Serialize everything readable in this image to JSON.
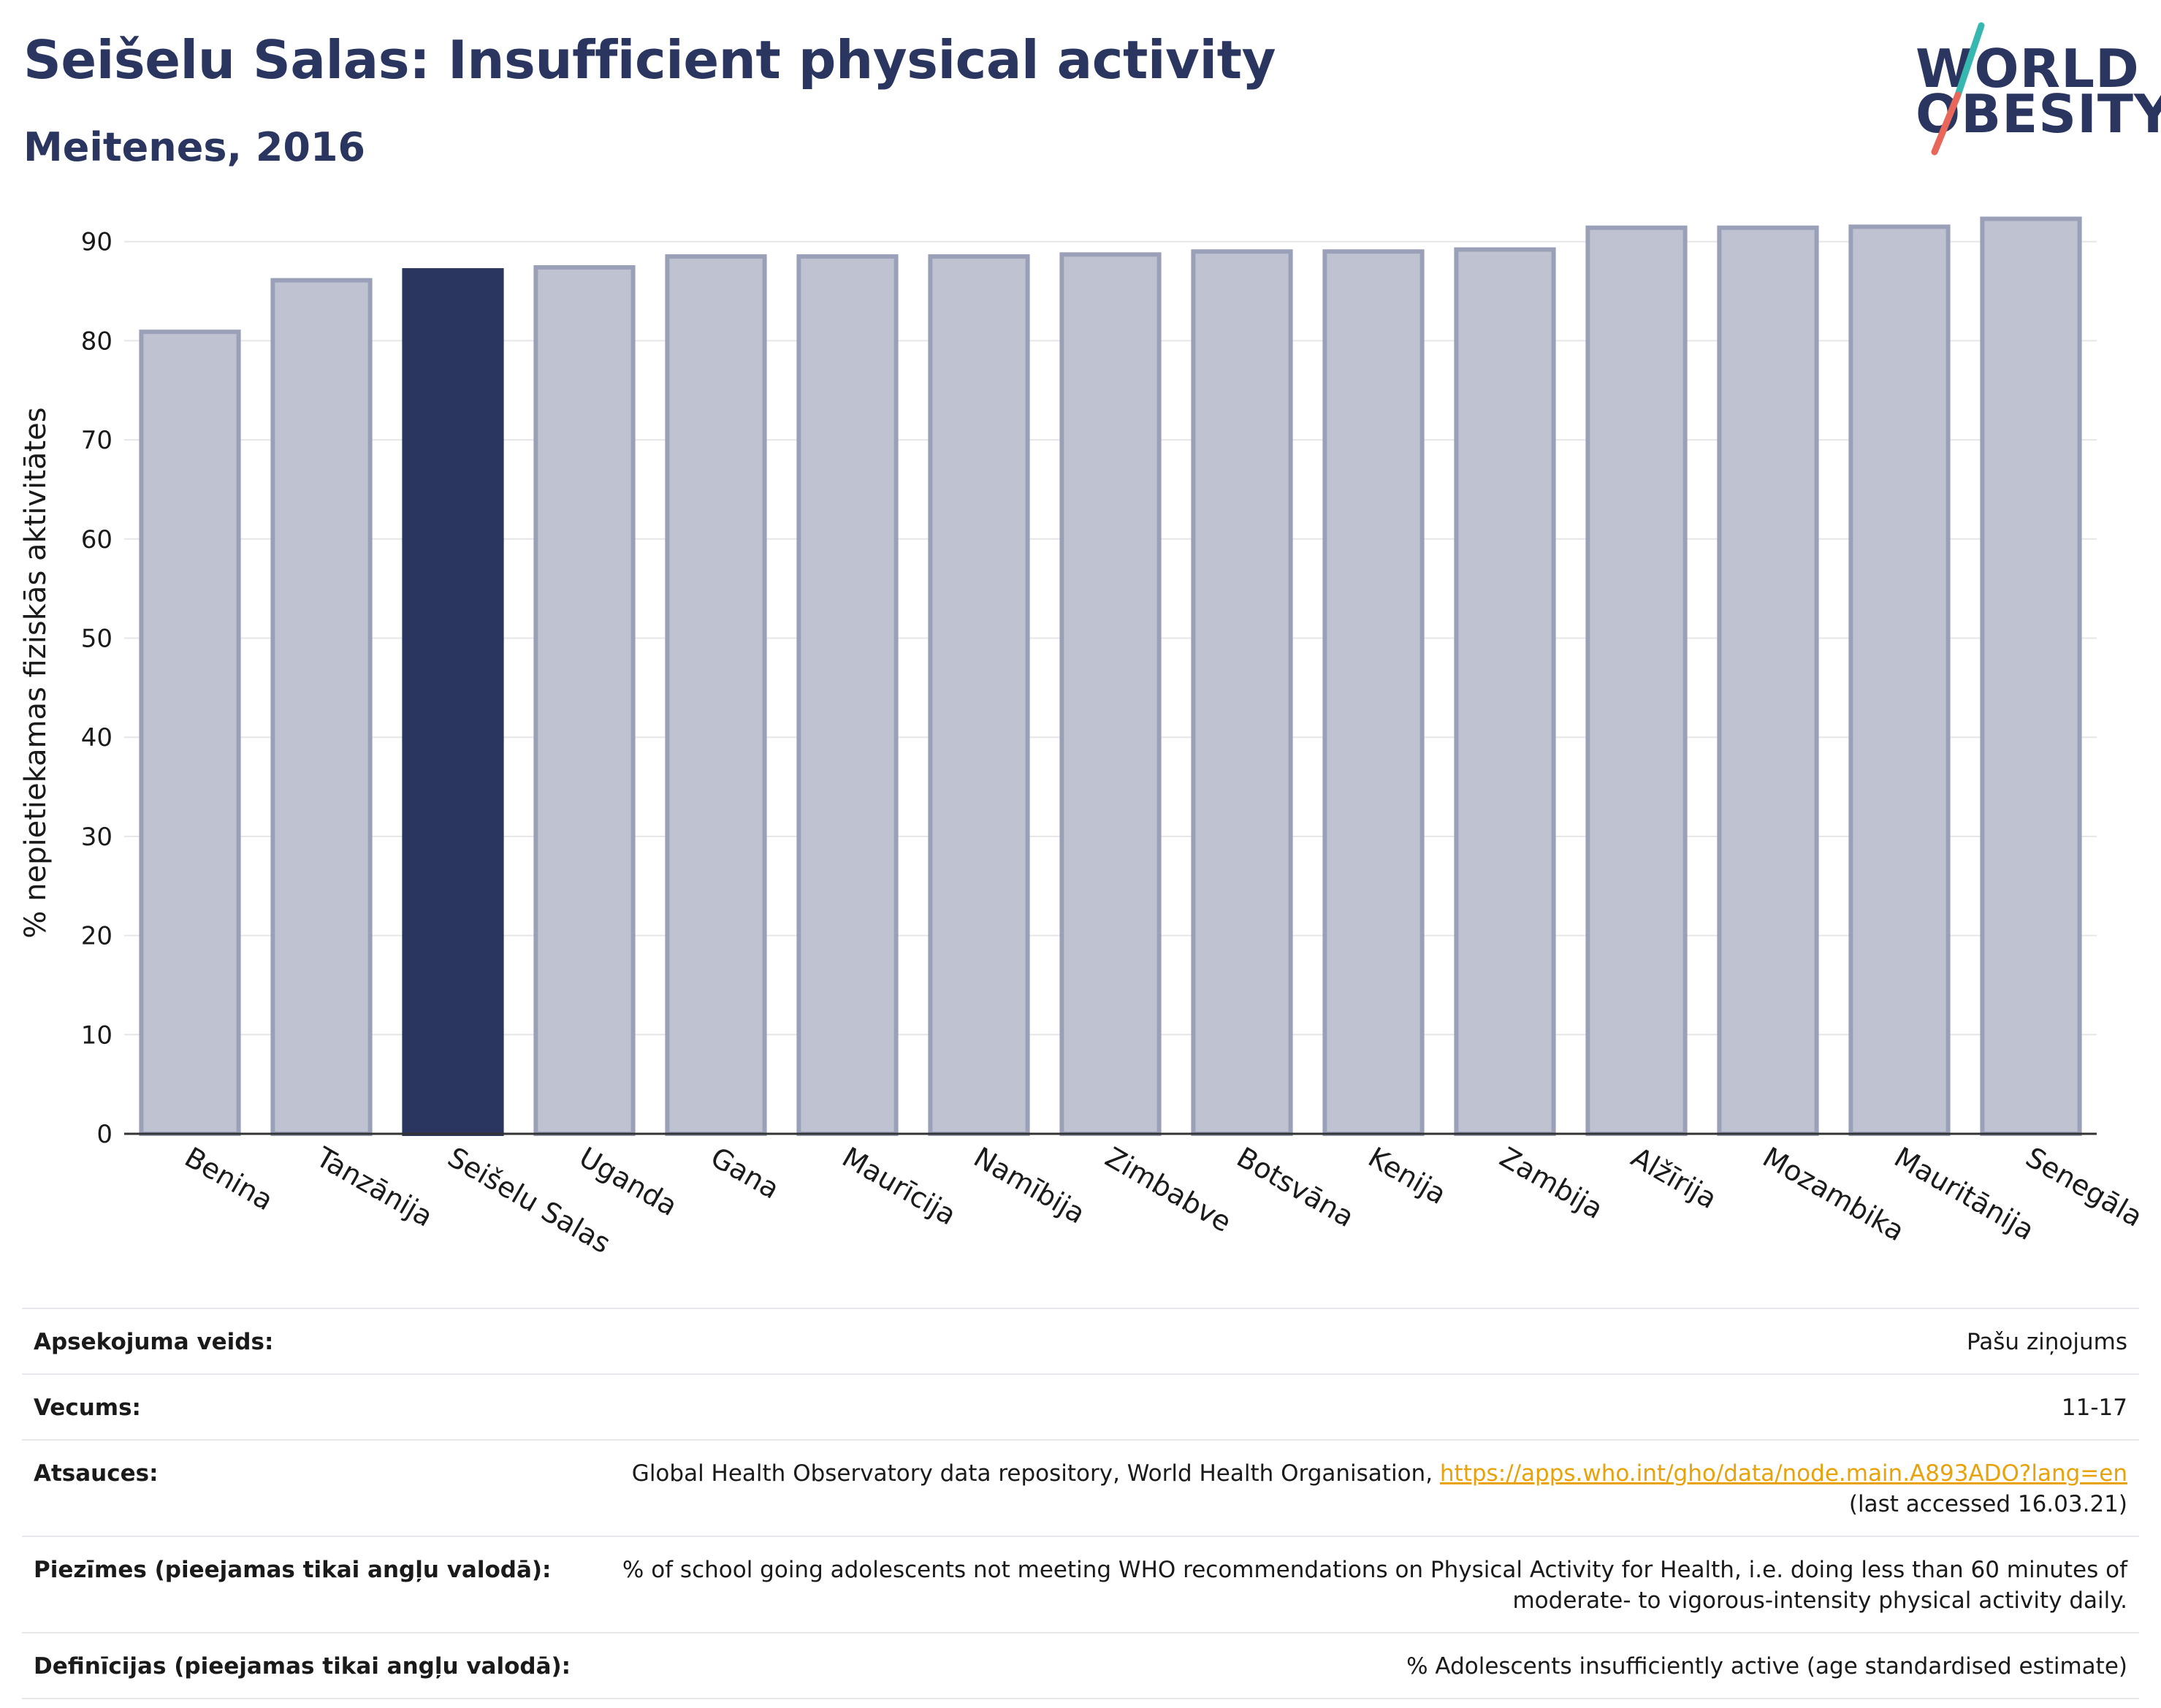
{
  "header": {
    "title": "Seišelu Salas: Insufficient physical activity",
    "subtitle": "Meitenes, 2016"
  },
  "logo": {
    "line1": "WORLD",
    "line2": "OBESITY",
    "slash_colors": [
      "#36b8b0",
      "#e8675a"
    ]
  },
  "colors": {
    "highlight": "#2b3660",
    "bar_fill": "#bfc3d1",
    "bar_stroke": "#9aa0b8",
    "grid": "#e6e6e6"
  },
  "chart_data": {
    "type": "bar",
    "categories": [
      "Benina",
      "Tanzānija",
      "Seišelu Salas",
      "Uganda",
      "Gana",
      "Maurīcija",
      "Namībija",
      "Zimbabve",
      "Botsvāna",
      "Kenija",
      "Zambija",
      "Alžīrija",
      "Mozambika",
      "Mauritānija",
      "Senegāla"
    ],
    "values": [
      80.9,
      86.1,
      87.1,
      87.4,
      88.5,
      88.5,
      88.5,
      88.7,
      89.0,
      89.0,
      89.2,
      91.4,
      91.4,
      91.5,
      92.3
    ],
    "highlight": "Seišelu Salas",
    "ylabel": "% nepietiekamas fiziskās aktivitātes",
    "xlabel": "",
    "ylim": [
      0,
      93
    ],
    "yticks": [
      0,
      10,
      20,
      30,
      40,
      50,
      60,
      70,
      80,
      90
    ],
    "grid": true
  },
  "meta": [
    {
      "label": "Apsekojuma veids:",
      "value": "Pašu ziņojums"
    },
    {
      "label": "Vecums:",
      "value": "11-17"
    },
    {
      "label": "Atsauces:",
      "value": "Global Health Observatory data repository, World Health Organisation, ",
      "link": "https://apps.who.int/gho/data/node.main.A893ADO?lang=en",
      "value2": "(last accessed 16.03.21)"
    },
    {
      "label": "Piezīmes (pieejamas tikai angļu valodā):",
      "value": "% of school going adolescents not meeting WHO recommendations on Physical Activity for Health, i.e. doing less than 60 minutes of moderate- to vigorous-intensity physical activity daily."
    },
    {
      "label": "Definīcijas (pieejamas tikai angļu valodā):",
      "value": "% Adolescents insufficiently active (age standardised estimate)"
    }
  ]
}
